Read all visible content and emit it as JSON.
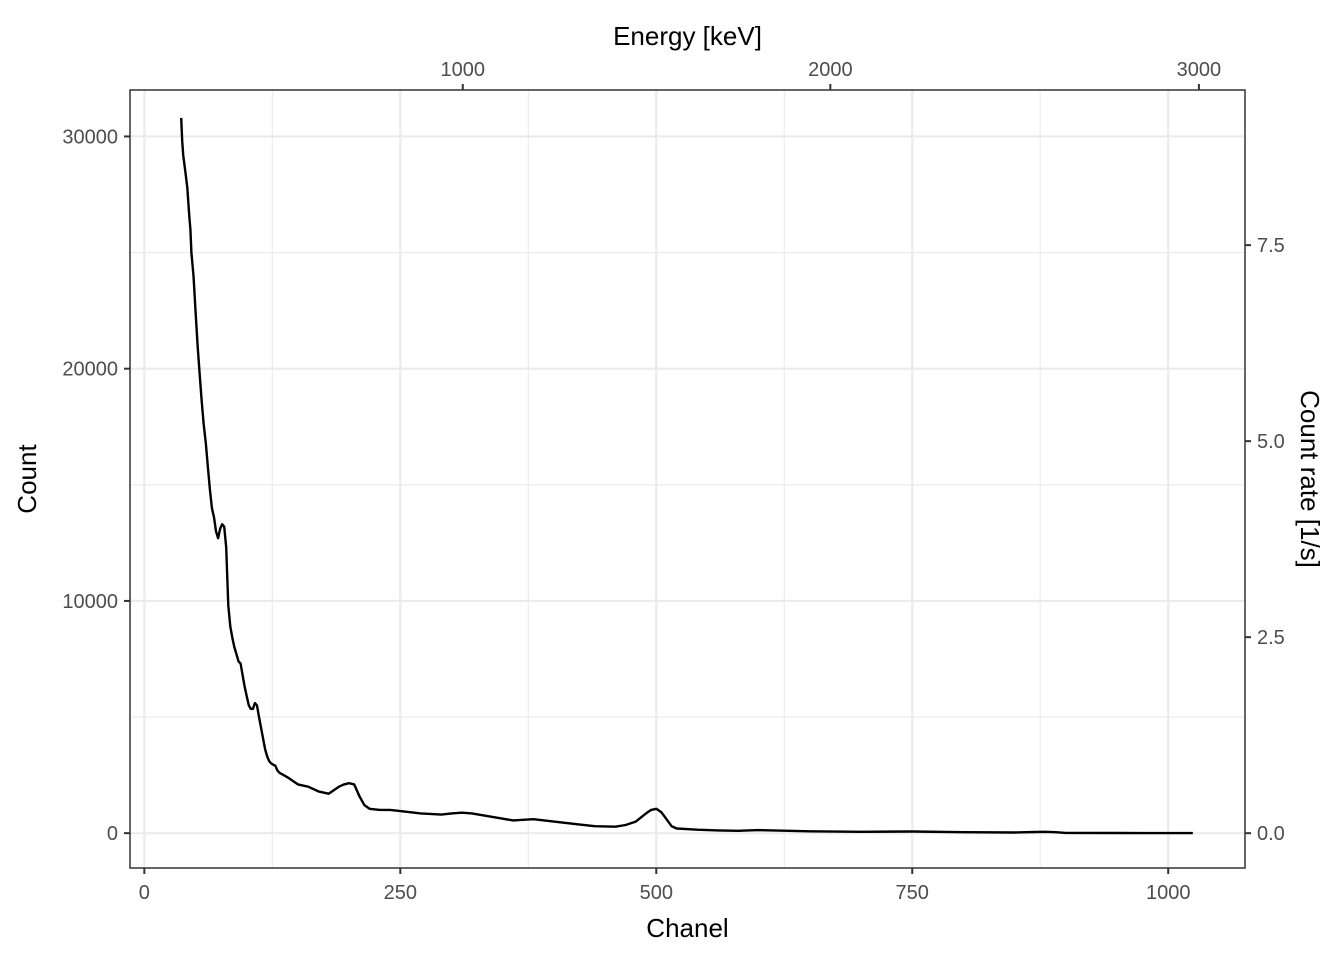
{
  "chart_data": {
    "type": "line",
    "title": "",
    "xlabel": "Chanel",
    "ylabel": "Count",
    "x2label": "Energy [keV]",
    "y2label": "Count rate [1/s]",
    "xlim": [
      -14,
      1075
    ],
    "ylim": [
      -1500,
      32000
    ],
    "x_ticks": [
      0,
      250,
      500,
      750,
      1000
    ],
    "x_tick_labels": [
      "0",
      "250",
      "500",
      "750",
      "1000"
    ],
    "y_ticks": [
      0,
      10000,
      20000,
      30000
    ],
    "y_tick_labels": [
      "0",
      "10000",
      "20000",
      "30000"
    ],
    "x2_ticks_channel": [
      311,
      670,
      1030
    ],
    "x2_tick_labels": [
      "1000",
      "2000",
      "3000"
    ],
    "y2_ticks_count": [
      0,
      8440,
      16880,
      25320
    ],
    "y2_tick_labels": [
      "0.0",
      "2.5",
      "5.0",
      "7.5"
    ],
    "grid": true,
    "line_color": "#000000",
    "series": [
      {
        "x": [
          36,
          37,
          38,
          40,
          42,
          44,
          45,
          46,
          48,
          50,
          52,
          54,
          56,
          58,
          60,
          62,
          64,
          66,
          68,
          70,
          72,
          74,
          76,
          78,
          80,
          82,
          84,
          86,
          88,
          90,
          92,
          94,
          96,
          98,
          100,
          102,
          104,
          106,
          108,
          110,
          112,
          115,
          118,
          120,
          122,
          124,
          126,
          128,
          130,
          132,
          134,
          136,
          140,
          145,
          150,
          160,
          170,
          180,
          190,
          195,
          200,
          205,
          210,
          215,
          220,
          230,
          240,
          250,
          270,
          290,
          300,
          310,
          320,
          340,
          360,
          380,
          400,
          420,
          440,
          460,
          470,
          480,
          490,
          495,
          500,
          505,
          510,
          515,
          520,
          540,
          560,
          580,
          600,
          650,
          700,
          750,
          800,
          850,
          870,
          880,
          890,
          900,
          950,
          1000,
          1024
        ],
        "y": [
          30800,
          29800,
          29200,
          28500,
          27800,
          26500,
          26000,
          25000,
          24000,
          22500,
          21000,
          19800,
          18600,
          17600,
          16800,
          15800,
          14800,
          14000,
          13600,
          13000,
          12700,
          13100,
          13300,
          13200,
          12300,
          9800,
          8900,
          8400,
          8000,
          7700,
          7400,
          7300,
          6800,
          6300,
          5900,
          5500,
          5350,
          5350,
          5600,
          5500,
          5000,
          4300,
          3600,
          3300,
          3100,
          3000,
          2950,
          2900,
          2700,
          2600,
          2550,
          2500,
          2400,
          2250,
          2100,
          2000,
          1800,
          1700,
          2000,
          2100,
          2150,
          2100,
          1600,
          1200,
          1050,
          1000,
          1000,
          950,
          850,
          800,
          850,
          880,
          850,
          700,
          550,
          600,
          500,
          400,
          300,
          280,
          350,
          500,
          850,
          1000,
          1050,
          900,
          600,
          300,
          200,
          150,
          120,
          100,
          130,
          80,
          60,
          70,
          40,
          30,
          50,
          60,
          40,
          10,
          5,
          3,
          3
        ]
      }
    ]
  }
}
